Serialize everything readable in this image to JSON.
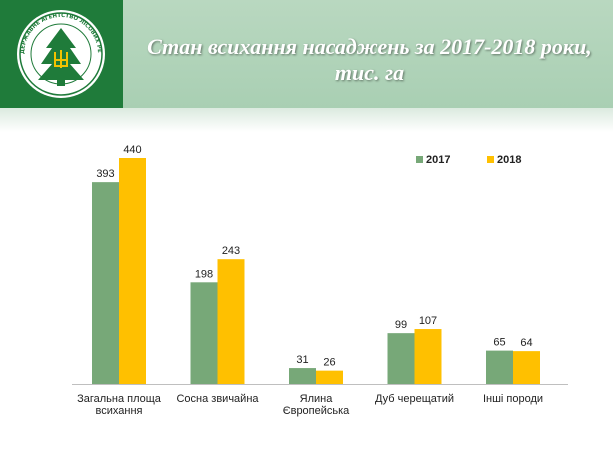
{
  "header": {
    "title_line1": "Стан всихання насаджень за 2017-2018 роки,",
    "title_line2": "тис. га",
    "logo_text": "ДЕРЖАВНЕ АГЕНТСТВО ЛІСОВИХ РЕСУРСІВ УКРАЇНИ",
    "colors": {
      "header": "#b0d3b8",
      "logo_bg": "#1f7b3a"
    }
  },
  "chart_data": {
    "type": "bar",
    "categories": [
      "Загальна площа всихання",
      "Сосна звичайна",
      "Ялина Європейська",
      "Дуб черещатий",
      "Інші породи"
    ],
    "category_lines": [
      [
        "Загальна площа",
        "всихання"
      ],
      [
        "Сосна звичайна"
      ],
      [
        "Ялина",
        "Європейська"
      ],
      [
        "Дуб черещатий"
      ],
      [
        "Інші породи"
      ]
    ],
    "series": [
      {
        "name": "2017",
        "values": [
          393,
          198,
          31,
          99,
          65
        ],
        "color": "#77a878"
      },
      {
        "name": "2018",
        "values": [
          440,
          243,
          26,
          107,
          64
        ],
        "color": "#ffc000"
      }
    ],
    "ylim": [
      0,
      440
    ],
    "legend": "top-right",
    "data_labels": true,
    "grid": false
  }
}
